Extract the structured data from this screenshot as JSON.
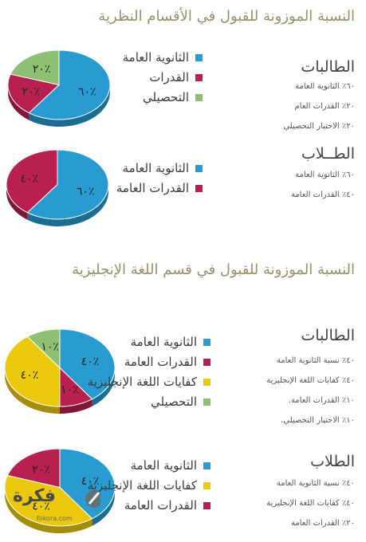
{
  "section1_title": "النسبة الموزونة للقبول في الأقسام النظرية",
  "section2_title": "النسبة الموزونة للقبول في قسم اللغة الإنجليزية",
  "colors": {
    "blue": "#2a9bd0",
    "red": "#b8204f",
    "green": "#8fbf73",
    "yellow": "#eac90d"
  },
  "chart_data": [
    {
      "type": "pie",
      "slices": [
        {
          "label": "الثانوية العامة",
          "value": 60,
          "text": "٦٠٪",
          "color": "#2a9bd0"
        },
        {
          "label": "القدرات",
          "value": 20,
          "text": "٢٠٪",
          "color": "#b8204f"
        },
        {
          "label": "التحصيلي",
          "value": 20,
          "text": "٢٠٪",
          "color": "#8fbf73"
        }
      ]
    },
    {
      "type": "pie",
      "slices": [
        {
          "label": "الثانوية العامة",
          "value": 60,
          "text": "٦٠٪",
          "color": "#2a9bd0"
        },
        {
          "label": "القدرات العامة",
          "value": 40,
          "text": "٤٠٪",
          "color": "#b8204f"
        }
      ]
    },
    {
      "type": "pie",
      "slices": [
        {
          "label": "الثانوية العامة",
          "value": 40,
          "text": "٤٠٪",
          "color": "#2a9bd0"
        },
        {
          "label": "القدرات العامة",
          "value": 10,
          "text": "١٠٪",
          "color": "#b8204f"
        },
        {
          "label": "كفايات اللغة الإنجليزية",
          "value": 40,
          "text": "٤٠٪",
          "color": "#eac90d"
        },
        {
          "label": "التحصيلي",
          "value": 10,
          "text": "١٠٪",
          "color": "#8fbf73"
        }
      ]
    },
    {
      "type": "pie",
      "slices": [
        {
          "label": "الثانوية العامة",
          "value": 40,
          "text": "٤٠٪",
          "color": "#2a9bd0"
        },
        {
          "label": "كفايات اللغة الإنجليزية",
          "value": 40,
          "text": "٤٠٪",
          "color": "#eac90d"
        },
        {
          "label": "القدرات العامة",
          "value": 20,
          "text": "٢٠٪",
          "color": "#b8204f"
        }
      ]
    }
  ],
  "info": [
    {
      "heading": "الطالبات",
      "lines": [
        "٦٠٪ الثانوية العامة",
        "٢٠٪ القدرات العام",
        "٢٠٪ الاختبار التحصيلي"
      ]
    },
    {
      "heading": "الطــلاب",
      "lines": [
        "٦٠٪ الثانوية العامة",
        "٤٠٪ القدرات العامة"
      ]
    },
    {
      "heading": "الطالبات",
      "lines": [
        "٤٠٪ نسبة الثانوية العامة",
        "٤٠٪ كفايات اللغة الإنجليزية",
        "١٠٪ القدرات العامة.",
        "١٠٪ الاختبار التحصيلي."
      ]
    },
    {
      "heading": "الطلاب",
      "lines": [
        "٤٠٪ نسبة الثانوية العامة",
        "٤٠٪ كفايات اللغة الإنجليزية",
        "٢٠٪ القدرات العامة"
      ]
    }
  ],
  "logo": {
    "text": "فكرة",
    "url": "fokora.com"
  }
}
